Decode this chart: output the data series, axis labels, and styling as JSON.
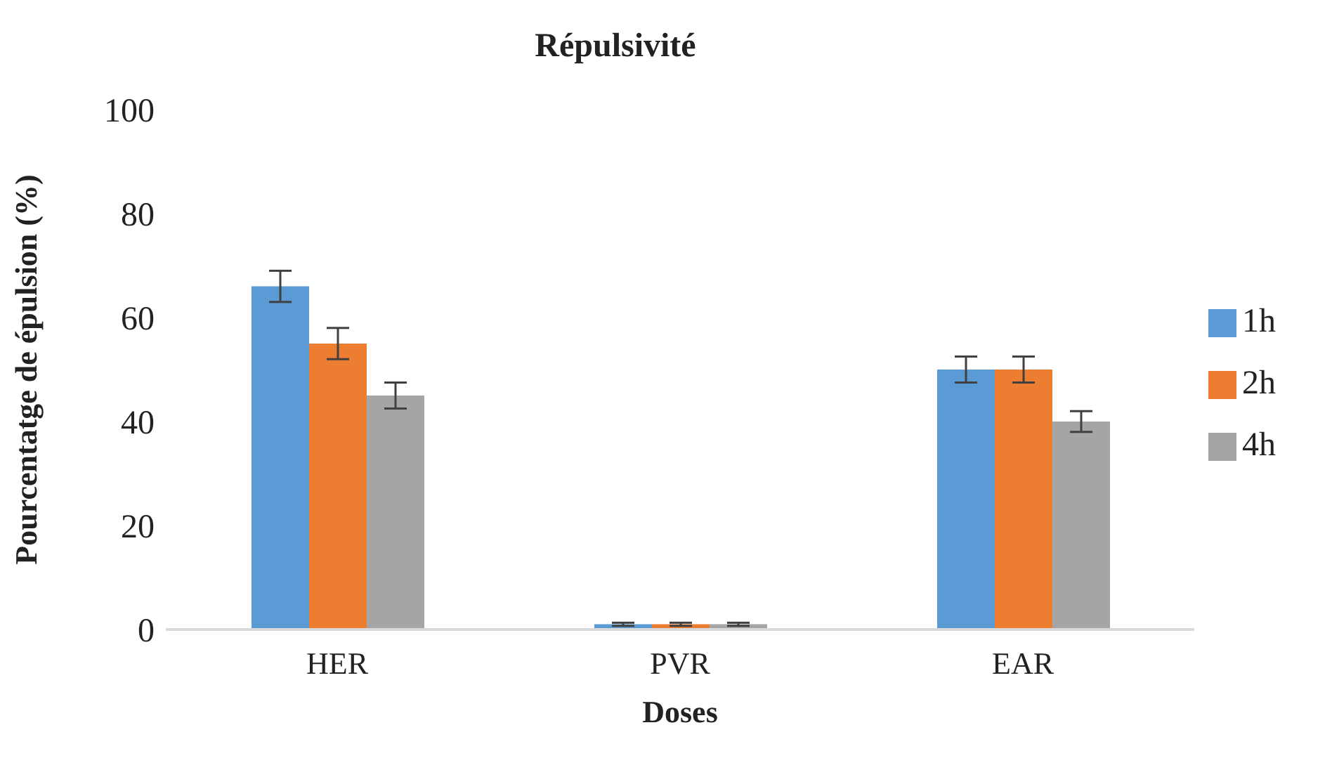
{
  "chart_data": {
    "type": "bar",
    "title": "Répulsivité",
    "xlabel": "Doses",
    "ylabel": "Pourcentatge de épulsion (%)",
    "categories": [
      "HER",
      "PVR",
      "EAR"
    ],
    "series": [
      {
        "name": "1h",
        "color": "#5b9bd5",
        "values": [
          66,
          1,
          50
        ],
        "errors": [
          3,
          0.3,
          2.5
        ]
      },
      {
        "name": "2h",
        "color": "#ed7d31",
        "values": [
          55,
          1,
          50
        ],
        "errors": [
          3,
          0.3,
          2.5
        ]
      },
      {
        "name": "4h",
        "color": "#a5a5a5",
        "values": [
          45,
          1,
          40
        ],
        "errors": [
          2.5,
          0.3,
          2
        ]
      }
    ],
    "ylim": [
      0,
      100
    ],
    "yticks": [
      0,
      20,
      40,
      60,
      80,
      100
    ],
    "grid": false,
    "legend": "right"
  }
}
